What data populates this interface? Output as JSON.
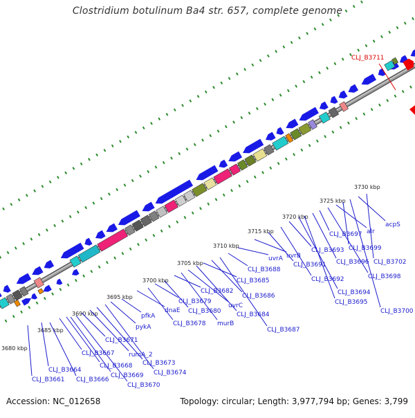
{
  "title": "Clostridium botulinum Ba4 str. 657, complete genome",
  "footer": {
    "accession": "Accession: NC_012658",
    "summary": "Topology: circular; Length: 3,977,794 bp; Genes: 3,799"
  },
  "colors": {
    "backbone": "#a0a0a0",
    "cds": "#1a1ae6",
    "gene_label": "#1a1acc",
    "highlight_label": "#dd0000",
    "tick_mark": "#2a8a2a"
  },
  "kbp_ticks": [
    "3680 kbp",
    "3685 kbp",
    "3690 kbp",
    "3695 kbp",
    "3700 kbp",
    "3705 kbp",
    "3710 kbp",
    "3715 kbp",
    "3720 kbp",
    "3725 kbp",
    "3730 kbp"
  ],
  "gene_labels": [
    "CLJ_B3661",
    "CLJ_B3664",
    "CLJ_B3666",
    "CLJ_B3667",
    "CLJ_B3668",
    "CLJ_B3669",
    "CLJ_B3670",
    "CLJ_B3671",
    "rumA_2",
    "CLJ_B3673",
    "CLJ_B3674",
    "pykA",
    "pfkA",
    "dnaE",
    "CLJ_B3678",
    "CLJ_B3679",
    "CLJ_B3680",
    "CLJ_B3682",
    "murB",
    "uvrC",
    "CLJ_B3684",
    "CLJ_B3685",
    "CLJ_B3686",
    "CLJ_B3687",
    "CLJ_B3688",
    "uvrA",
    "uvrB",
    "CLJ_B3691",
    "CLJ_B3692",
    "CLJ_B3693",
    "CLJ_B3694",
    "CLJ_B3695",
    "CLJ_B3696",
    "CLJ_B3697",
    "CLJ_B3698",
    "alr",
    "CLJ_B3699",
    "CLJ_B3700",
    "acpS",
    "CLJ_B3702"
  ],
  "highlight_label": "CLJ_B3711"
}
